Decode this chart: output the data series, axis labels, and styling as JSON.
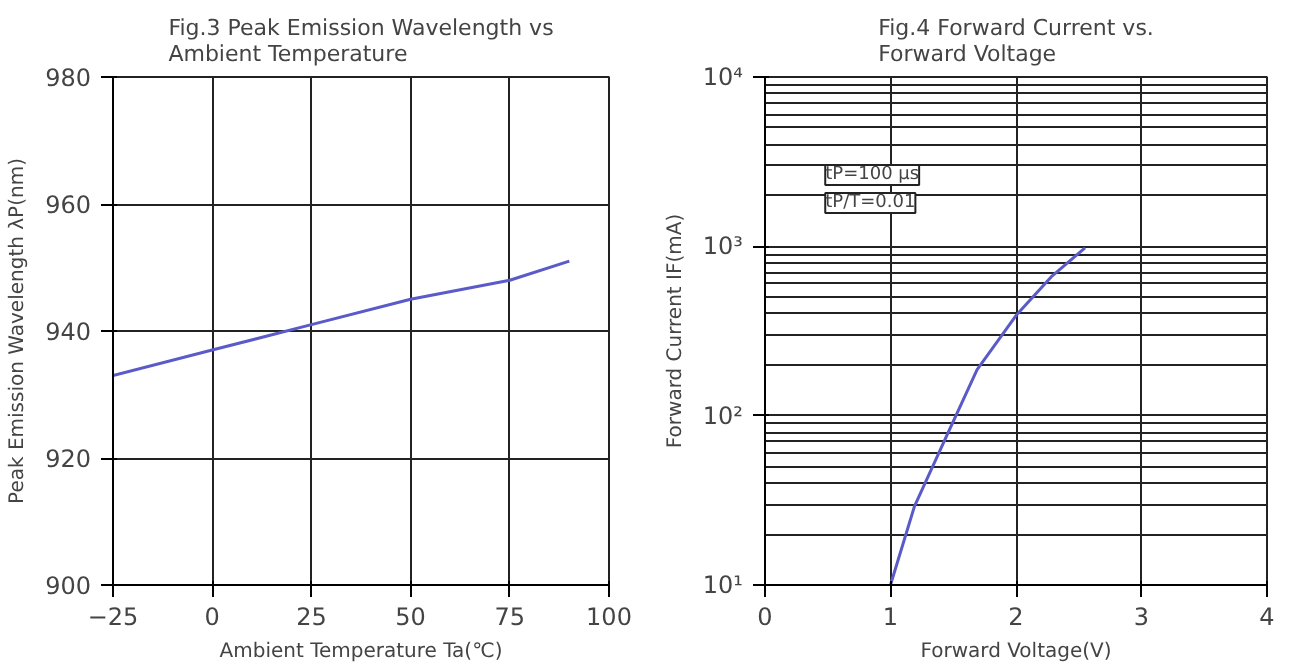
{
  "chart_data": [
    {
      "type": "line",
      "title": "Fig.3 Peak Emission Wavelength vs\nAmbient Temperature",
      "xlabel": "Ambient Temperature Ta(℃)",
      "ylabel": "Peak Emission Wavelength λP(nm)",
      "x": [
        -25,
        0,
        25,
        50,
        75,
        90
      ],
      "series": [
        {
          "color": "#5a5ac8",
          "values": [
            933,
            937,
            941,
            945,
            948,
            951
          ]
        }
      ],
      "xlim": [
        -25,
        100
      ],
      "xticks": [
        -25,
        0,
        25,
        50,
        75,
        100
      ],
      "ylim": [
        900,
        980
      ],
      "yticks": [
        900,
        920,
        940,
        960,
        980
      ],
      "grid": true
    },
    {
      "type": "line",
      "title": "Fig.4 Forward Current vs.\nForward Voltage",
      "xlabel": "Forward Voltage(V)",
      "ylabel": "Forward Current IF(mA)",
      "x": [
        1.0,
        1.19,
        1.44,
        1.69,
        2.0,
        2.28,
        2.55
      ],
      "series": [
        {
          "color": "#5a5ac8",
          "values": [
            10,
            29,
            74,
            187,
            390,
            660,
            980
          ]
        }
      ],
      "annotations": [
        "tP=100 μs",
        "tP/T=0.01"
      ],
      "log": "y",
      "xlim": [
        0,
        4
      ],
      "xticks": [
        0,
        1,
        2,
        3,
        4
      ],
      "ylim": [
        10,
        10000
      ],
      "yticks": [
        {
          "value": 10,
          "label": "10¹"
        },
        {
          "value": 100,
          "label": "10²"
        },
        {
          "value": 1000,
          "label": "10³"
        },
        {
          "value": 10000,
          "label": "10⁴"
        }
      ],
      "grid": true
    }
  ]
}
